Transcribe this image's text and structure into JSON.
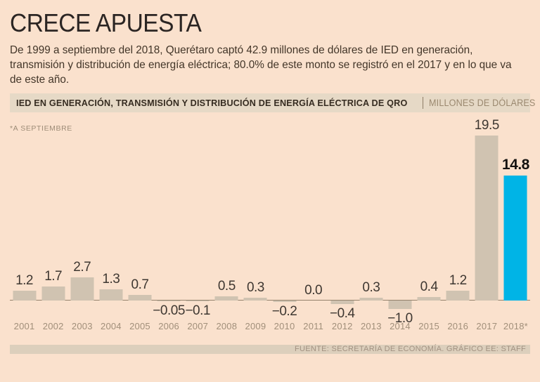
{
  "page": {
    "title": "CRECE APUESTA",
    "intro_lines": [
      "De 1999 a septiembre del 2018, Querétaro captó 42.9 millones de dólares de IED en generación,",
      "transmisión y distribución de energía eléctrica; 80.0% de este monto se registró en el 2017 y en lo que va",
      "de este año."
    ]
  },
  "chart_header": {
    "title": "IED EN GENERACIÓN, TRANSMISIÓN Y DISTRIBUCIÓN DE ENERGÍA ELÉCTRICA DE QRO",
    "units": "MILLONES DE DÓLARES"
  },
  "footer": {
    "source": "FUENTE: SECRETARÍA DE ECONOMÍA. GRÁFICO EE: STAFF"
  },
  "colors": {
    "background": "#fae1cd",
    "header_bg": "#e6d9c6",
    "footer_bg": "#dccfbc",
    "axis": "#94826c",
    "bar": "#d0c3b1",
    "highlight": "#00b4e6"
  },
  "chart_data": {
    "type": "bar",
    "title": "IED EN GENERACIÓN, TRANSMISIÓN Y DISTRIBUCIÓN DE ENERGÍA ELÉCTRICA DE QRO",
    "units_label": "MILLONES DE DÓLARES",
    "note": "*A SEPTIEMBRE",
    "categories": [
      "2001",
      "2002",
      "2003",
      "2004",
      "2005",
      "2006",
      "2007",
      "2008",
      "2009",
      "2010",
      "2011",
      "2012",
      "2013",
      "2014",
      "2015",
      "2016",
      "2017",
      "2018*"
    ],
    "values": [
      1.2,
      1.7,
      2.7,
      1.3,
      0.7,
      -0.05,
      -0.1,
      0.5,
      0.3,
      -0.2,
      0.0,
      -0.4,
      0.3,
      -1.0,
      0.4,
      1.2,
      19.5,
      14.8
    ],
    "value_labels": [
      "1.2",
      "1.7",
      "2.7",
      "1.3",
      "0.7",
      "−0.05",
      "−0.1",
      "0.5",
      "0.3",
      "−0.2",
      "0.0",
      "−0.4",
      "0.3",
      "−1.0",
      "0.4",
      "1.2",
      "19.5",
      "14.8"
    ],
    "highlight_index": 17,
    "bar_color": "#d0c3b1",
    "highlight_color": "#00b4e6",
    "ylim": [
      -1.5,
      20
    ],
    "grid": false,
    "legend": false
  }
}
